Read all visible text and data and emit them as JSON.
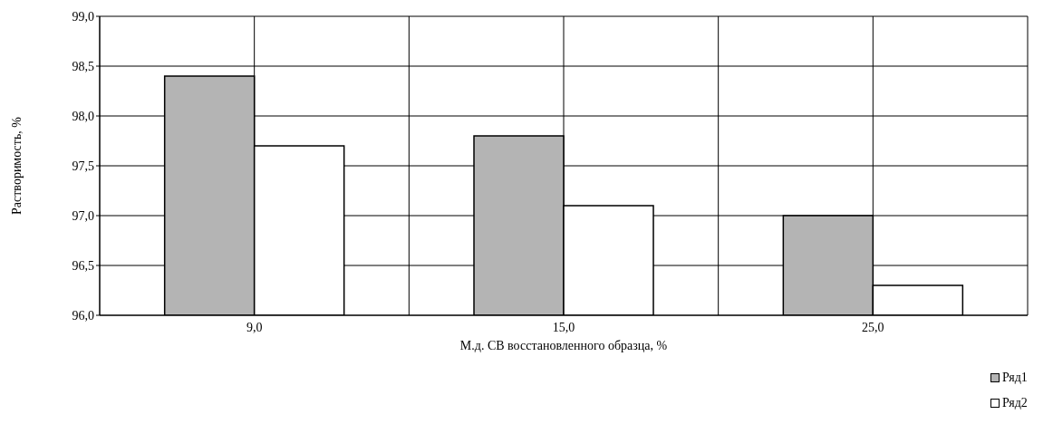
{
  "chart_data": {
    "type": "bar",
    "xlabel": "М.д. СВ восстановленного образца, %",
    "ylabel": "Растворимость, %",
    "categories": [
      "9,0",
      "15,0",
      "25,0"
    ],
    "series": [
      {
        "name": "Ряд1",
        "color": "#b4b4b4",
        "values": [
          98.4,
          97.8,
          97.0
        ]
      },
      {
        "name": "Ряд2",
        "color": "#ffffff",
        "values": [
          97.7,
          97.1,
          96.3
        ]
      }
    ],
    "ylim": [
      96,
      99
    ],
    "yticks": [
      {
        "value": 96,
        "label": "96,0"
      },
      {
        "value": 96.5,
        "label": "96,5"
      },
      {
        "value": 97,
        "label": "97,0"
      },
      {
        "value": 97.5,
        "label": "97,5"
      },
      {
        "value": 98,
        "label": "98,0"
      },
      {
        "value": 98.5,
        "label": "98,5"
      },
      {
        "value": 99,
        "label": "99,0"
      }
    ],
    "grid": true,
    "legend": "bottom right"
  }
}
